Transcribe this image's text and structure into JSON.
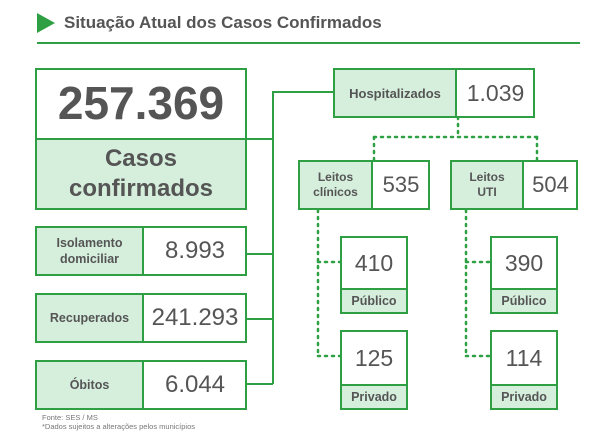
{
  "header": {
    "title": "Situação Atual dos Casos Confirmados"
  },
  "total": {
    "value": "257.369",
    "label_line1": "Casos",
    "label_line2": "confirmados"
  },
  "left_items": [
    {
      "label_line1": "Isolamento",
      "label_line2": "domiciliar",
      "value": "8.993"
    },
    {
      "label_line1": "Recuperados",
      "label_line2": "",
      "value": "241.293"
    },
    {
      "label_line1": "Óbitos",
      "label_line2": "",
      "value": "6.044"
    }
  ],
  "hospital": {
    "label": "Hospitalizados",
    "value": "1.039"
  },
  "clinical": {
    "label_line1": "Leitos",
    "label_line2": "clínicos",
    "value": "535",
    "public_value": "410",
    "public_label": "Público",
    "private_value": "125",
    "private_label": "Privado"
  },
  "icu": {
    "label_line1": "Leitos",
    "label_line2": "UTI",
    "value": "504",
    "public_value": "390",
    "public_label": "Público",
    "private_value": "114",
    "private_label": "Privado"
  },
  "footer": {
    "source": "Fonte: SES / MS",
    "note": "*Dados sujeitos a alterações pelos municípios"
  },
  "colors": {
    "accent": "#2ea043",
    "label_bg": "#d6efdd",
    "text": "#555555"
  }
}
